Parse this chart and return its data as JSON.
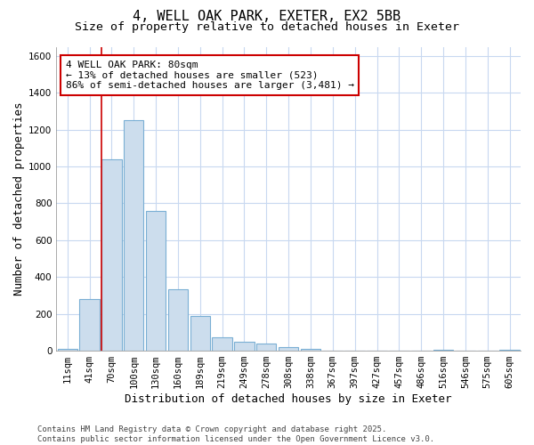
{
  "title_line1": "4, WELL OAK PARK, EXETER, EX2 5BB",
  "title_line2": "Size of property relative to detached houses in Exeter",
  "xlabel": "Distribution of detached houses by size in Exeter",
  "ylabel": "Number of detached properties",
  "categories": [
    "11sqm",
    "41sqm",
    "70sqm",
    "100sqm",
    "130sqm",
    "160sqm",
    "189sqm",
    "219sqm",
    "249sqm",
    "278sqm",
    "308sqm",
    "338sqm",
    "367sqm",
    "397sqm",
    "427sqm",
    "457sqm",
    "486sqm",
    "516sqm",
    "546sqm",
    "575sqm",
    "605sqm"
  ],
  "values": [
    10,
    280,
    1040,
    1250,
    760,
    335,
    190,
    75,
    50,
    40,
    20,
    10,
    0,
    0,
    0,
    0,
    0,
    5,
    0,
    0,
    5
  ],
  "bar_color": "#ccdded",
  "bar_edge_color": "#7aafd4",
  "vline_index": 2,
  "vline_color": "#cc0000",
  "annotation_text": "4 WELL OAK PARK: 80sqm\n← 13% of detached houses are smaller (523)\n86% of semi-detached houses are larger (3,481) →",
  "ylim": [
    0,
    1650
  ],
  "yticks": [
    0,
    200,
    400,
    600,
    800,
    1000,
    1200,
    1400,
    1600
  ],
  "background_color": "#ffffff",
  "plot_bg_color": "#ffffff",
  "grid_color": "#c8d8f0",
  "footer_text": "Contains HM Land Registry data © Crown copyright and database right 2025.\nContains public sector information licensed under the Open Government Licence v3.0.",
  "title_fontsize": 11,
  "subtitle_fontsize": 9.5,
  "axis_label_fontsize": 9,
  "tick_fontsize": 7.5,
  "annotation_fontsize": 8,
  "footer_fontsize": 6.5
}
